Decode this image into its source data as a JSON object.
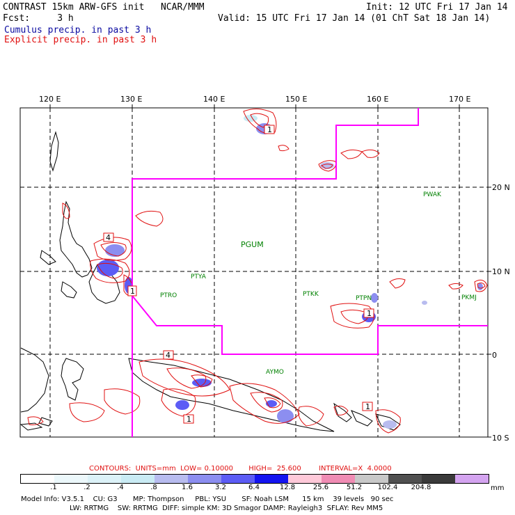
{
  "header": {
    "line1_left": "CONTRAST 15km ARW-GFS init   NCAR/MMM",
    "line1_right": "Init: 12 UTC Fri 17 Jan 14",
    "line2_left": "Fcst:     3 h",
    "line2_right": "Valid: 15 UTC Fri 17 Jan 14 (01 ChT Sat 18 Jan 14)",
    "legend_cumulus": "Cumulus precip. in past 3 h",
    "legend_explicit": "Explicit precip. in past 3 h"
  },
  "colors": {
    "cumulus_text": "#0a0aa0",
    "explicit_text": "#e01010",
    "domain_line": "#ff00ff",
    "station_text": "#008000",
    "contour": "#e01010"
  },
  "map": {
    "lon_labels": [
      "120 E",
      "130 E",
      "140 E",
      "150 E",
      "160 E",
      "170 E"
    ],
    "lat_labels": [
      "20 N",
      "10 N",
      "0",
      "10 S"
    ],
    "stations": [
      "PWAK",
      "PGUM",
      "PTYA",
      "PTRO",
      "PTKK",
      "PTPN",
      "PKMJ",
      "AYMO"
    ],
    "box_labels": [
      "1",
      "4",
      "1",
      "1",
      "4",
      "1",
      "1"
    ]
  },
  "footer": {
    "contours": "CONTOURS:  UNITS=mm  LOW= 0.10000       HIGH=  25.600        INTERVAL=X  4.0000",
    "colorbar_ticks": [
      ".1",
      ".2",
      ".4",
      ".8",
      "1.6",
      "3.2",
      "6.4",
      "12.8",
      "25.6",
      "51.2",
      "102.4",
      "204.8"
    ],
    "colorbar_unit": "mm",
    "colorbar_colors": [
      "#ffffff",
      "#ecf8fb",
      "#dcf2f8",
      "#c9ebf4",
      "#b8bcef",
      "#8c8ef0",
      "#5c5cf5",
      "#1414f0",
      "#ffc9d9",
      "#f08cb4",
      "#c8c8c8",
      "#505050",
      "#3a3a3a",
      "#d4a4f0"
    ],
    "model_info_1": "Model Info: V3.5.1    CU: G3       MP: Thompson     PBL: YSU       SF: Noah LSM      15 km    39 levels   90 sec",
    "model_info_2": "LW: RRTMG    SW: RRTMG  DIFF: simple KM: 3D Smagor DAMP: Rayleigh3  SFLAY: Rev MM5"
  }
}
